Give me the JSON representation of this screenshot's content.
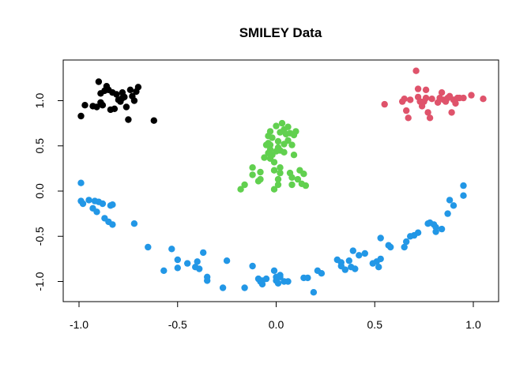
{
  "chart_data": {
    "type": "scatter",
    "title": "SMILEY Data",
    "xlabel": "",
    "ylabel": "",
    "xlim": [
      -1.0,
      1.05
    ],
    "ylim": [
      -1.12,
      1.34
    ],
    "x_ticks": [
      -1.0,
      -0.5,
      0.0,
      0.5,
      1.0
    ],
    "x_tick_labels": [
      "-1.0",
      "-0.5",
      "0.0",
      "0.5",
      "1.0"
    ],
    "y_ticks": [
      -1.0,
      -0.5,
      0.0,
      0.5,
      1.0
    ],
    "y_tick_labels": [
      "-1.0",
      "-0.5",
      "0.0",
      "0.5",
      "1.0"
    ],
    "grid": false,
    "legend": "none",
    "series": [
      {
        "color": "#000000",
        "points": [
          [
            -0.99,
            0.83
          ],
          [
            -0.97,
            0.95
          ],
          [
            -0.93,
            0.94
          ],
          [
            -0.91,
            0.93
          ],
          [
            -0.9,
            1.21
          ],
          [
            -0.89,
            1.08
          ],
          [
            -0.89,
            0.98
          ],
          [
            -0.88,
            0.95
          ],
          [
            -0.87,
            1.11
          ],
          [
            -0.86,
            1.16
          ],
          [
            -0.85,
            1.12
          ],
          [
            -0.84,
            0.9
          ],
          [
            -0.83,
            1.09
          ],
          [
            -0.82,
            0.91
          ],
          [
            -0.81,
            1.07
          ],
          [
            -0.8,
            1.01
          ],
          [
            -0.79,
            0.99
          ],
          [
            -0.78,
            1.03
          ],
          [
            -0.78,
            1.09
          ],
          [
            -0.77,
            1.04
          ],
          [
            -0.76,
            0.93
          ],
          [
            -0.75,
            0.79
          ],
          [
            -0.74,
            1.12
          ],
          [
            -0.73,
            1.05
          ],
          [
            -0.72,
            1.0
          ],
          [
            -0.71,
            1.1
          ],
          [
            -0.7,
            1.15
          ],
          [
            -0.62,
            0.78
          ]
        ]
      },
      {
        "color": "#DF536B",
        "points": [
          [
            0.55,
            0.96
          ],
          [
            0.64,
            0.99
          ],
          [
            0.65,
            1.02
          ],
          [
            0.66,
            0.89
          ],
          [
            0.67,
            0.81
          ],
          [
            0.68,
            1.01
          ],
          [
            0.71,
            1.33
          ],
          [
            0.72,
            1.13
          ],
          [
            0.72,
            1.04
          ],
          [
            0.73,
            0.99
          ],
          [
            0.74,
            0.94
          ],
          [
            0.75,
            0.99
          ],
          [
            0.76,
            1.12
          ],
          [
            0.76,
            1.03
          ],
          [
            0.77,
            0.87
          ],
          [
            0.78,
            0.81
          ],
          [
            0.79,
            1.02
          ],
          [
            0.82,
            0.98
          ],
          [
            0.83,
            1.03
          ],
          [
            0.84,
            1.09
          ],
          [
            0.85,
            1.01
          ],
          [
            0.86,
            0.99
          ],
          [
            0.87,
            1.03
          ],
          [
            0.88,
            1.05
          ],
          [
            0.89,
            0.87
          ],
          [
            0.9,
            1.01
          ],
          [
            0.91,
            0.97
          ],
          [
            0.92,
            1.03
          ],
          [
            0.93,
            1.03
          ],
          [
            0.95,
            1.03
          ],
          [
            0.99,
            1.06
          ],
          [
            1.05,
            1.02
          ]
        ]
      },
      {
        "color": "#61D04F",
        "points": [
          [
            -0.18,
            0.02
          ],
          [
            -0.16,
            0.07
          ],
          [
            -0.12,
            0.18
          ],
          [
            -0.12,
            0.26
          ],
          [
            -0.09,
            0.11
          ],
          [
            -0.08,
            0.13
          ],
          [
            -0.08,
            0.21
          ],
          [
            -0.06,
            0.37
          ],
          [
            -0.05,
            0.51
          ],
          [
            -0.04,
            0.53
          ],
          [
            -0.04,
            0.61
          ],
          [
            -0.04,
            0.42
          ],
          [
            -0.03,
            0.36
          ],
          [
            -0.03,
            0.51
          ],
          [
            -0.03,
            0.46
          ],
          [
            -0.03,
            0.66
          ],
          [
            -0.02,
            0.59
          ],
          [
            -0.02,
            0.4
          ],
          [
            -0.01,
            0.32
          ],
          [
            -0.01,
            0.23
          ],
          [
            -0.01,
            0.02
          ],
          [
            0.0,
            0.44
          ],
          [
            0.0,
            0.72
          ],
          [
            0.01,
            0.55
          ],
          [
            0.01,
            0.48
          ],
          [
            0.01,
            0.13
          ],
          [
            0.01,
            0.07
          ],
          [
            0.02,
            0.45
          ],
          [
            0.02,
            0.26
          ],
          [
            0.02,
            0.2
          ],
          [
            0.02,
            0.65
          ],
          [
            0.03,
            0.75
          ],
          [
            0.04,
            0.68
          ],
          [
            0.04,
            0.52
          ],
          [
            0.04,
            0.43
          ],
          [
            0.05,
            0.63
          ],
          [
            0.06,
            0.71
          ],
          [
            0.06,
            0.56
          ],
          [
            0.07,
            0.64
          ],
          [
            0.07,
            0.2
          ],
          [
            0.08,
            0.07
          ],
          [
            0.08,
            0.15
          ],
          [
            0.08,
            0.51
          ],
          [
            0.09,
            0.62
          ],
          [
            0.09,
            0.4
          ],
          [
            0.1,
            0.66
          ],
          [
            0.11,
            0.13
          ],
          [
            0.12,
            0.23
          ],
          [
            0.13,
            0.08
          ],
          [
            0.14,
            0.19
          ],
          [
            0.15,
            0.06
          ]
        ]
      },
      {
        "color": "#2297E6",
        "points": [
          [
            -0.99,
            0.09
          ],
          [
            -0.99,
            -0.11
          ],
          [
            -0.98,
            -0.14
          ],
          [
            -0.95,
            -0.1
          ],
          [
            -0.93,
            -0.19
          ],
          [
            -0.92,
            -0.11
          ],
          [
            -0.91,
            -0.23
          ],
          [
            -0.9,
            -0.12
          ],
          [
            -0.88,
            -0.14
          ],
          [
            -0.87,
            -0.3
          ],
          [
            -0.85,
            -0.34
          ],
          [
            -0.84,
            -0.16
          ],
          [
            -0.83,
            -0.37
          ],
          [
            -0.83,
            -0.15
          ],
          [
            -0.72,
            -0.36
          ],
          [
            -0.65,
            -0.62
          ],
          [
            -0.57,
            -0.88
          ],
          [
            -0.53,
            -0.64
          ],
          [
            -0.5,
            -0.76
          ],
          [
            -0.5,
            -0.85
          ],
          [
            -0.45,
            -0.8
          ],
          [
            -0.41,
            -0.84
          ],
          [
            -0.4,
            -0.78
          ],
          [
            -0.39,
            -0.86
          ],
          [
            -0.37,
            -0.68
          ],
          [
            -0.35,
            -0.99
          ],
          [
            -0.35,
            -0.95
          ],
          [
            -0.27,
            -1.07
          ],
          [
            -0.25,
            -0.77
          ],
          [
            -0.16,
            -1.07
          ],
          [
            -0.12,
            -0.83
          ],
          [
            -0.09,
            -0.97
          ],
          [
            -0.08,
            -1.0
          ],
          [
            -0.07,
            -1.03
          ],
          [
            -0.07,
            -0.99
          ],
          [
            -0.05,
            -0.97
          ],
          [
            -0.01,
            -0.88
          ],
          [
            0.0,
            -0.99
          ],
          [
            0.0,
            -0.95
          ],
          [
            0.01,
            -1.02
          ],
          [
            0.02,
            -0.95
          ],
          [
            0.02,
            -0.93
          ],
          [
            0.04,
            -1.0
          ],
          [
            0.06,
            -1.0
          ],
          [
            0.14,
            -0.96
          ],
          [
            0.16,
            -0.96
          ],
          [
            0.19,
            -1.12
          ],
          [
            0.21,
            -0.88
          ],
          [
            0.23,
            -0.91
          ],
          [
            0.31,
            -0.76
          ],
          [
            0.33,
            -0.79
          ],
          [
            0.33,
            -0.83
          ],
          [
            0.35,
            -0.87
          ],
          [
            0.37,
            -0.77
          ],
          [
            0.38,
            -0.84
          ],
          [
            0.39,
            -0.66
          ],
          [
            0.4,
            -0.86
          ],
          [
            0.42,
            -0.71
          ],
          [
            0.45,
            -0.69
          ],
          [
            0.49,
            -0.8
          ],
          [
            0.51,
            -0.78
          ],
          [
            0.52,
            -0.84
          ],
          [
            0.53,
            -0.52
          ],
          [
            0.53,
            -0.75
          ],
          [
            0.57,
            -0.6
          ],
          [
            0.58,
            -0.62
          ],
          [
            0.65,
            -0.62
          ],
          [
            0.66,
            -0.56
          ],
          [
            0.68,
            -0.5
          ],
          [
            0.7,
            -0.49
          ],
          [
            0.72,
            -0.46
          ],
          [
            0.77,
            -0.36
          ],
          [
            0.78,
            -0.35
          ],
          [
            0.8,
            -0.37
          ],
          [
            0.81,
            -0.4
          ],
          [
            0.81,
            -0.45
          ],
          [
            0.84,
            -0.42
          ],
          [
            0.87,
            -0.25
          ],
          [
            0.88,
            -0.1
          ],
          [
            0.9,
            -0.16
          ],
          [
            0.95,
            0.06
          ],
          [
            0.95,
            -0.05
          ]
        ]
      }
    ]
  }
}
